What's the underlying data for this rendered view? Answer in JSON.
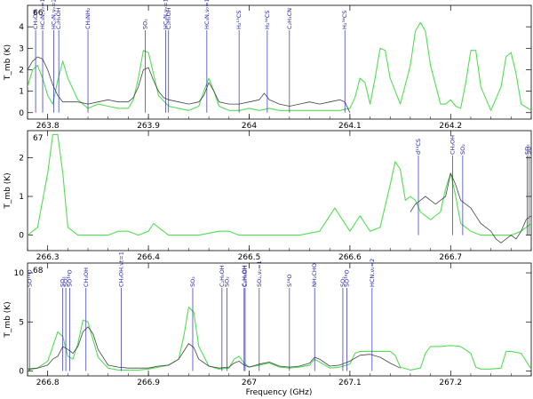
{
  "chart_data": [
    {
      "type": "line",
      "panel_id": "66",
      "ylabel": "T_mb (K)",
      "xlim": [
        263.78,
        264.28
      ],
      "ylim": [
        -0.3,
        5.0
      ],
      "xticks": [
        263.8,
        263.9,
        264,
        264.1,
        264.2
      ],
      "xtick_labels": [
        "263.8",
        "263.9",
        "264",
        "264.1",
        "264.2"
      ],
      "yticks": [
        0,
        1,
        2,
        3,
        4
      ],
      "ytick_labels": [
        "0",
        "1",
        "2",
        "3",
        "4"
      ],
      "series": [
        {
          "name": "observed",
          "color": "#444444",
          "x": [
            263.78,
            263.785,
            263.79,
            263.795,
            263.8,
            263.805,
            263.81,
            263.815,
            263.82,
            263.83,
            263.84,
            263.85,
            263.86,
            263.87,
            263.88,
            263.885,
            263.89,
            263.895,
            263.9,
            263.905,
            263.91,
            263.915,
            263.92,
            263.93,
            263.94,
            263.95,
            263.955,
            263.96,
            263.965,
            263.97,
            263.98,
            263.99,
            264.0,
            264.01,
            264.015,
            264.02,
            264.03,
            264.04,
            264.05,
            264.06,
            264.07,
            264.08,
            264.09,
            264.095,
            264.1
          ],
          "y": [
            2.0,
            2.4,
            2.6,
            2.5,
            2.0,
            1.3,
            0.8,
            0.5,
            0.5,
            0.5,
            0.4,
            0.5,
            0.6,
            0.5,
            0.5,
            0.7,
            1.2,
            2.0,
            2.1,
            1.5,
            1.0,
            0.7,
            0.6,
            0.5,
            0.4,
            0.5,
            0.8,
            1.4,
            1.0,
            0.5,
            0.4,
            0.4,
            0.5,
            0.6,
            0.9,
            0.6,
            0.4,
            0.3,
            0.4,
            0.5,
            0.4,
            0.5,
            0.6,
            0.5,
            0.0
          ]
        },
        {
          "name": "model",
          "color": "#55dd55",
          "x": [
            263.78,
            263.785,
            263.79,
            263.795,
            263.8,
            263.805,
            263.81,
            263.815,
            263.82,
            263.83,
            263.84,
            263.85,
            263.86,
            263.87,
            263.88,
            263.885,
            263.89,
            263.895,
            263.9,
            263.905,
            263.91,
            263.92,
            263.93,
            263.94,
            263.95,
            263.955,
            263.96,
            263.965,
            263.97,
            263.98,
            263.99,
            264.0,
            264.01,
            264.02,
            264.03,
            264.04,
            264.05,
            264.06,
            264.07,
            264.08,
            264.09,
            264.1,
            264.105,
            264.11,
            264.115,
            264.12,
            264.125,
            264.13,
            264.135,
            264.14,
            264.15,
            264.16,
            264.165,
            264.17,
            264.175,
            264.18,
            264.19,
            264.195,
            264.2,
            264.205,
            264.21,
            264.215,
            264.22,
            264.225,
            264.23,
            264.24,
            264.25,
            264.255,
            264.26,
            264.265,
            264.27,
            264.28
          ],
          "y": [
            1.2,
            2.0,
            2.2,
            1.6,
            0.8,
            0.4,
            1.5,
            2.4,
            1.6,
            0.6,
            0.2,
            0.4,
            0.3,
            0.2,
            0.2,
            0.6,
            1.6,
            2.9,
            2.8,
            1.8,
            0.8,
            0.3,
            0.2,
            0.1,
            0.3,
            1.0,
            1.6,
            1.0,
            0.3,
            0.1,
            0.1,
            0.2,
            0.1,
            0.2,
            0.1,
            0.1,
            0.1,
            0.1,
            0.1,
            0.1,
            0.1,
            0.2,
            0.7,
            1.6,
            1.4,
            0.4,
            1.6,
            3.0,
            2.9,
            1.6,
            0.4,
            2.2,
            3.8,
            4.2,
            3.8,
            2.2,
            0.4,
            0.4,
            0.6,
            0.3,
            0.2,
            1.4,
            2.9,
            2.9,
            1.2,
            0.1,
            1.2,
            2.6,
            2.8,
            1.8,
            0.4,
            0.1
          ]
        }
      ],
      "line_ids": [
        {
          "x": 263.788,
          "label": "CH₃OH"
        },
        {
          "x": 263.795,
          "label": "HC₃N,ν₇=1"
        },
        {
          "x": 263.806,
          "label": "HC₃N,ν₇=2"
        },
        {
          "x": 263.811,
          "label": "C₂H₅OH"
        },
        {
          "x": 263.84,
          "label": "CH₃NH₂"
        },
        {
          "x": 263.897,
          "label": "SO₂"
        },
        {
          "x": 263.917,
          "label": "HC₃N,ν₇=1"
        },
        {
          "x": 263.92,
          "label": "C₂H₅OH"
        },
        {
          "x": 263.958,
          "label": "HC₃N,ν₇=1/ν₇=3"
        },
        {
          "x": 263.99,
          "label": "H₂¹³CS"
        },
        {
          "x": 264.018,
          "label": "H₂³⁴CS"
        },
        {
          "x": 264.04,
          "label": "C₂H₃CN"
        },
        {
          "x": 264.095,
          "label": "H₂³⁴CS"
        }
      ]
    },
    {
      "type": "line",
      "panel_id": "67",
      "ylabel": "T_mb (K)",
      "xlim": [
        266.28,
        266.78
      ],
      "ylim": [
        -0.4,
        2.7
      ],
      "xticks": [
        266.3,
        266.4,
        266.5,
        266.6,
        266.7
      ],
      "xtick_labels": [
        "266.3",
        "266.4",
        "266.5",
        "266.6",
        "266.7"
      ],
      "yticks": [
        0,
        1,
        2
      ],
      "ytick_labels": [
        "0",
        "1",
        "2"
      ],
      "series": [
        {
          "name": "observed",
          "color": "#444444",
          "x": [
            266.66,
            266.665,
            266.67,
            266.675,
            266.68,
            266.685,
            266.69,
            266.695,
            266.7,
            266.705,
            266.71,
            266.715,
            266.72,
            266.725,
            266.73,
            266.735,
            266.74,
            266.745,
            266.75,
            266.755,
            266.76,
            266.765,
            266.77,
            266.775,
            266.78
          ],
          "y": [
            0.6,
            0.8,
            0.9,
            1.0,
            0.9,
            0.8,
            0.9,
            1.0,
            1.6,
            1.3,
            0.9,
            0.8,
            0.7,
            0.5,
            0.3,
            0.2,
            0.1,
            -0.1,
            -0.2,
            -0.1,
            0.0,
            -0.1,
            0.1,
            0.4,
            0.5
          ]
        },
        {
          "name": "model",
          "color": "#55dd55",
          "x": [
            266.28,
            266.29,
            266.3,
            266.305,
            266.31,
            266.315,
            266.32,
            266.33,
            266.34,
            266.36,
            266.37,
            266.38,
            266.39,
            266.4,
            266.405,
            266.41,
            266.42,
            266.43,
            266.45,
            266.47,
            266.48,
            266.49,
            266.5,
            266.52,
            266.55,
            266.57,
            266.58,
            266.585,
            266.59,
            266.6,
            266.605,
            266.61,
            266.615,
            266.62,
            266.63,
            266.64,
            266.645,
            266.65,
            266.655,
            266.66,
            266.665,
            266.67,
            266.68,
            266.69,
            266.695,
            266.7,
            266.705,
            266.71,
            266.72,
            266.73,
            266.74,
            266.75,
            266.76,
            266.77,
            266.78
          ],
          "y": [
            0.0,
            0.2,
            1.6,
            2.6,
            2.6,
            1.6,
            0.2,
            0.0,
            0.0,
            0.0,
            0.1,
            0.1,
            0.0,
            0.1,
            0.3,
            0.2,
            0.0,
            0.0,
            0.0,
            0.1,
            0.1,
            0.0,
            0.0,
            0.0,
            0.0,
            0.1,
            0.5,
            0.7,
            0.5,
            0.1,
            0.3,
            0.5,
            0.3,
            0.1,
            0.2,
            1.3,
            1.9,
            1.7,
            0.9,
            1.0,
            0.9,
            0.6,
            0.4,
            0.6,
            1.2,
            1.6,
            1.0,
            0.3,
            0.1,
            0.0,
            0.0,
            0.0,
            0.0,
            0.1,
            0.3
          ]
        }
      ],
      "line_ids": [
        {
          "x": 266.668,
          "label": "d¹³CS"
        },
        {
          "x": 266.702,
          "label": "CH₃OH"
        },
        {
          "x": 266.712,
          "label": "SO₂"
        },
        {
          "x": 266.776,
          "label": "SO₂"
        },
        {
          "x": 266.778,
          "label": "SO"
        }
      ]
    },
    {
      "type": "line",
      "panel_id": "68",
      "ylabel": "T_mb (K)",
      "xlabel": "Frequency (GHz)",
      "xlim": [
        266.78,
        267.28
      ],
      "ylim": [
        -0.5,
        11.0
      ],
      "xticks": [
        266.8,
        266.9,
        267,
        267.1,
        267.2
      ],
      "xtick_labels": [
        "266.8",
        "266.9",
        "267",
        "267.1",
        "267.2"
      ],
      "yticks": [
        0,
        5,
        10
      ],
      "ytick_labels": [
        "0",
        "5",
        "10"
      ],
      "series": [
        {
          "name": "observed",
          "color": "#444444",
          "x": [
            266.78,
            266.79,
            266.8,
            266.805,
            266.81,
            266.815,
            266.82,
            266.825,
            266.83,
            266.835,
            266.84,
            266.845,
            266.85,
            266.86,
            266.87,
            266.88,
            266.89,
            266.9,
            266.91,
            266.92,
            266.93,
            266.935,
            266.94,
            266.945,
            266.95,
            266.96,
            266.97,
            266.98,
            266.985,
            266.99,
            266.995,
            267.0,
            267.01,
            267.02,
            267.03,
            267.04,
            267.05,
            267.06,
            267.065,
            267.07,
            267.08,
            267.09,
            267.1,
            267.11,
            267.12,
            267.13,
            267.14,
            267.15
          ],
          "y": [
            0.2,
            0.3,
            0.6,
            1.2,
            1.5,
            2.5,
            2.2,
            1.8,
            2.5,
            4.0,
            4.5,
            3.8,
            2.2,
            0.6,
            0.4,
            0.3,
            0.3,
            0.3,
            0.5,
            0.6,
            1.2,
            2.0,
            2.8,
            2.4,
            1.2,
            0.5,
            0.3,
            0.4,
            0.8,
            1.0,
            0.6,
            0.4,
            0.7,
            0.9,
            0.5,
            0.4,
            0.5,
            0.8,
            1.4,
            1.2,
            0.5,
            0.6,
            1.0,
            1.6,
            1.7,
            1.4,
            0.8,
            0.3
          ]
        },
        {
          "name": "model",
          "color": "#55dd55",
          "x": [
            266.78,
            266.79,
            266.8,
            266.805,
            266.81,
            266.815,
            266.82,
            266.825,
            266.83,
            266.835,
            266.84,
            266.845,
            266.85,
            266.86,
            266.87,
            266.88,
            266.89,
            266.9,
            266.91,
            266.92,
            266.93,
            266.935,
            266.94,
            266.945,
            266.95,
            266.96,
            266.97,
            266.98,
            266.985,
            266.99,
            266.995,
            267.0,
            267.01,
            267.02,
            267.03,
            267.04,
            267.05,
            267.06,
            267.065,
            267.07,
            267.08,
            267.09,
            267.1,
            267.105,
            267.11,
            267.12,
            267.13,
            267.14,
            267.145,
            267.15,
            267.16,
            267.17,
            267.175,
            267.18,
            267.19,
            267.2,
            267.21,
            267.22,
            267.225,
            267.23,
            267.24,
            267.25,
            267.255,
            267.26,
            267.27,
            267.28
          ],
          "y": [
            0.1,
            0.3,
            1.0,
            2.5,
            4.0,
            3.5,
            1.5,
            1.2,
            2.8,
            5.2,
            5.0,
            3.2,
            1.4,
            0.3,
            0.1,
            0.1,
            0.1,
            0.2,
            0.4,
            0.6,
            1.2,
            3.5,
            6.5,
            6.0,
            2.5,
            0.5,
            0.2,
            0.3,
            1.2,
            1.5,
            0.8,
            0.4,
            0.6,
            0.8,
            0.4,
            0.3,
            0.4,
            0.6,
            1.2,
            0.9,
            0.3,
            0.4,
            0.7,
            1.8,
            2.0,
            2.0,
            2.0,
            2.0,
            1.6,
            0.4,
            0.1,
            0.3,
            1.8,
            2.5,
            2.5,
            2.6,
            2.5,
            1.8,
            0.4,
            0.2,
            0.2,
            0.3,
            2.0,
            2.0,
            1.8,
            0.2
          ]
        }
      ],
      "line_ids": [
        {
          "x": 266.782,
          "label": "SO¹⁸O"
        },
        {
          "x": 266.815,
          "label": "SO₂"
        },
        {
          "x": 266.818,
          "label": "SO₂"
        },
        {
          "x": 266.822,
          "label": "SO¹⁸O"
        },
        {
          "x": 266.838,
          "label": "CH₃OH"
        },
        {
          "x": 266.873,
          "label": "CH₃OH,νt=1"
        },
        {
          "x": 266.944,
          "label": "SO₂"
        },
        {
          "x": 266.973,
          "label": "C₂H₅OH"
        },
        {
          "x": 266.978,
          "label": "SO₂"
        },
        {
          "x": 266.995,
          "label": "C₂H₅OH"
        },
        {
          "x": 266.996,
          "label": "C₂H₅OH"
        },
        {
          "x": 267.01,
          "label": "SO₂,ν₂=1"
        },
        {
          "x": 267.04,
          "label": "S¹⁸O"
        },
        {
          "x": 267.065,
          "label": "NH₂CHO"
        },
        {
          "x": 267.093,
          "label": "SO₂"
        },
        {
          "x": 267.097,
          "label": "SO¹⁸O"
        },
        {
          "x": 267.122,
          "label": "HCN,ν₂=2"
        }
      ]
    }
  ]
}
